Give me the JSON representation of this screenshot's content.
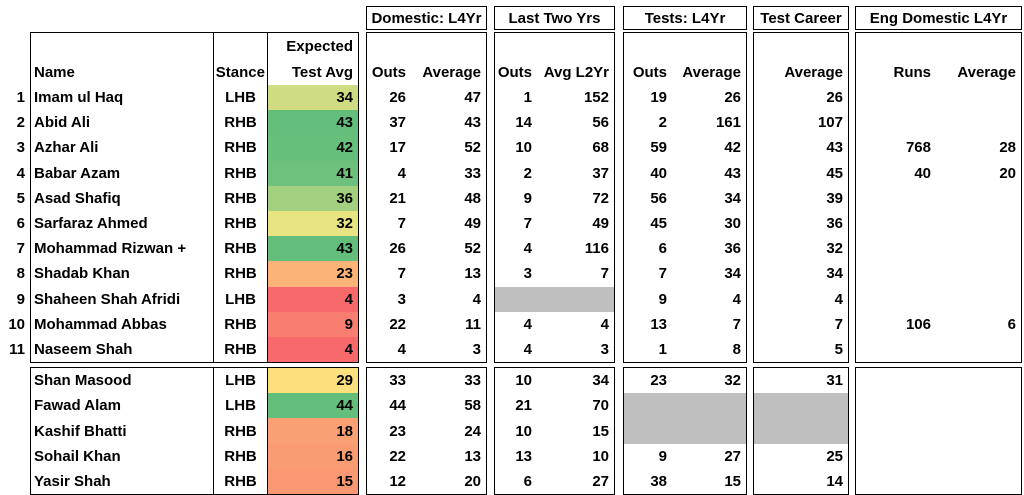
{
  "colors": {
    "gray_blank": "#bfbfbf",
    "border": "#000000"
  },
  "left": {
    "name_header": "Name",
    "stance_header": "Stance",
    "expected_header_line1": "Expected",
    "expected_header_line2": "Test Avg"
  },
  "groups": [
    {
      "id": "domestic",
      "title": "Domestic: L4Yr",
      "columns": [
        "Outs",
        "Average"
      ]
    },
    {
      "id": "last2",
      "title": "Last Two Yrs",
      "columns": [
        "Outs",
        "Avg L2Yr"
      ]
    },
    {
      "id": "tests",
      "title": "Tests: L4Yr",
      "columns": [
        "Outs",
        "Average"
      ]
    },
    {
      "id": "career",
      "title": "Test Career",
      "columns": [
        "Average"
      ]
    },
    {
      "id": "eng",
      "title": "Eng Domestic L4Yr",
      "columns": [
        "Runs",
        "Average"
      ]
    }
  ],
  "sections": [
    {
      "rows": [
        {
          "num": "1",
          "name": "Imam ul Haq",
          "stance": "LHB",
          "expected": "34",
          "expected_color": "#d0dc81",
          "gray": [],
          "cells": {
            "domestic": [
              "26",
              "47"
            ],
            "last2": [
              "1",
              "152"
            ],
            "tests": [
              "19",
              "26"
            ],
            "career": [
              "26"
            ],
            "eng": [
              "",
              ""
            ]
          }
        },
        {
          "num": "2",
          "name": "Abid Ali",
          "stance": "RHB",
          "expected": "43",
          "expected_color": "#63be7b",
          "gray": [],
          "cells": {
            "domestic": [
              "37",
              "43"
            ],
            "last2": [
              "14",
              "56"
            ],
            "tests": [
              "2",
              "161"
            ],
            "career": [
              "107"
            ],
            "eng": [
              "",
              ""
            ]
          }
        },
        {
          "num": "3",
          "name": "Azhar Ali",
          "stance": "RHB",
          "expected": "42",
          "expected_color": "#66bf7b",
          "gray": [],
          "cells": {
            "domestic": [
              "17",
              "52"
            ],
            "last2": [
              "10",
              "68"
            ],
            "tests": [
              "59",
              "42"
            ],
            "career": [
              "43"
            ],
            "eng": [
              "768",
              "28"
            ]
          }
        },
        {
          "num": "4",
          "name": "Babar Azam",
          "stance": "RHB",
          "expected": "41",
          "expected_color": "#6ec17c",
          "gray": [],
          "cells": {
            "domestic": [
              "4",
              "33"
            ],
            "last2": [
              "2",
              "37"
            ],
            "tests": [
              "40",
              "43"
            ],
            "career": [
              "45"
            ],
            "eng": [
              "40",
              "20"
            ]
          }
        },
        {
          "num": "5",
          "name": "Asad Shafiq",
          "stance": "RHB",
          "expected": "36",
          "expected_color": "#a2d07f",
          "gray": [],
          "cells": {
            "domestic": [
              "21",
              "48"
            ],
            "last2": [
              "9",
              "72"
            ],
            "tests": [
              "56",
              "34"
            ],
            "career": [
              "39"
            ],
            "eng": [
              "",
              ""
            ]
          }
        },
        {
          "num": "6",
          "name": "Sarfaraz Ahmed",
          "stance": "RHB",
          "expected": "32",
          "expected_color": "#e9e482",
          "gray": [],
          "cells": {
            "domestic": [
              "7",
              "49"
            ],
            "last2": [
              "7",
              "49"
            ],
            "tests": [
              "45",
              "30"
            ],
            "career": [
              "36"
            ],
            "eng": [
              "",
              ""
            ]
          }
        },
        {
          "num": "7",
          "name": "Mohammad Rizwan +",
          "stance": "RHB",
          "expected": "43",
          "expected_color": "#63be7b",
          "gray": [],
          "cells": {
            "domestic": [
              "26",
              "52"
            ],
            "last2": [
              "4",
              "116"
            ],
            "tests": [
              "6",
              "36"
            ],
            "career": [
              "32"
            ],
            "eng": [
              "",
              ""
            ]
          }
        },
        {
          "num": "8",
          "name": "Shadab Khan",
          "stance": "RHB",
          "expected": "23",
          "expected_color": "#fbb378",
          "gray": [],
          "cells": {
            "domestic": [
              "7",
              "13"
            ],
            "last2": [
              "3",
              "7"
            ],
            "tests": [
              "7",
              "34"
            ],
            "career": [
              "34"
            ],
            "eng": [
              "",
              ""
            ]
          }
        },
        {
          "num": "9",
          "name": "Shaheen Shah Afridi",
          "stance": "LHB",
          "expected": "4",
          "expected_color": "#f8696b",
          "gray": [
            "last2"
          ],
          "cells": {
            "domestic": [
              "3",
              "4"
            ],
            "last2": [
              "",
              ""
            ],
            "tests": [
              "9",
              "4"
            ],
            "career": [
              "4"
            ],
            "eng": [
              "",
              ""
            ]
          }
        },
        {
          "num": "10",
          "name": "Mohammad Abbas",
          "stance": "RHB",
          "expected": "9",
          "expected_color": "#f87f70",
          "gray": [],
          "cells": {
            "domestic": [
              "22",
              "11"
            ],
            "last2": [
              "4",
              "4"
            ],
            "tests": [
              "13",
              "7"
            ],
            "career": [
              "7"
            ],
            "eng": [
              "106",
              "6"
            ]
          }
        },
        {
          "num": "11",
          "name": "Naseem Shah",
          "stance": "RHB",
          "expected": "4",
          "expected_color": "#f8696b",
          "gray": [],
          "cells": {
            "domestic": [
              "4",
              "3"
            ],
            "last2": [
              "4",
              "3"
            ],
            "tests": [
              "1",
              "8"
            ],
            "career": [
              "5"
            ],
            "eng": [
              "",
              ""
            ]
          }
        }
      ]
    },
    {
      "rows": [
        {
          "num": "",
          "name": "Shan Masood",
          "stance": "LHB",
          "expected": "29",
          "expected_color": "#fbe07d",
          "gray": [],
          "cells": {
            "domestic": [
              "33",
              "33"
            ],
            "last2": [
              "10",
              "34"
            ],
            "tests": [
              "23",
              "32"
            ],
            "career": [
              "31"
            ],
            "eng": [
              "",
              ""
            ]
          }
        },
        {
          "num": "",
          "name": "Fawad Alam",
          "stance": "LHB",
          "expected": "44",
          "expected_color": "#63be7b",
          "gray": [
            "tests",
            "career"
          ],
          "cells": {
            "domestic": [
              "44",
              "58"
            ],
            "last2": [
              "21",
              "70"
            ],
            "tests": [
              "",
              ""
            ],
            "career": [
              ""
            ],
            "eng": [
              "",
              ""
            ]
          }
        },
        {
          "num": "",
          "name": "Kashif Bhatti",
          "stance": "RHB",
          "expected": "18",
          "expected_color": "#f9a175",
          "gray": [
            "tests",
            "career"
          ],
          "cells": {
            "domestic": [
              "23",
              "24"
            ],
            "last2": [
              "10",
              "15"
            ],
            "tests": [
              "",
              ""
            ],
            "career": [
              ""
            ],
            "eng": [
              "",
              ""
            ]
          }
        },
        {
          "num": "",
          "name": "Sohail Khan",
          "stance": "RHB",
          "expected": "16",
          "expected_color": "#f99b73",
          "gray": [],
          "cells": {
            "domestic": [
              "22",
              "13"
            ],
            "last2": [
              "13",
              "10"
            ],
            "tests": [
              "9",
              "27"
            ],
            "career": [
              "25"
            ],
            "eng": [
              "",
              ""
            ]
          }
        },
        {
          "num": "",
          "name": "Yasir Shah",
          "stance": "RHB",
          "expected": "15",
          "expected_color": "#f99872",
          "gray": [],
          "cells": {
            "domestic": [
              "12",
              "20"
            ],
            "last2": [
              "6",
              "27"
            ],
            "tests": [
              "38",
              "15"
            ],
            "career": [
              "14"
            ],
            "eng": [
              "",
              ""
            ]
          }
        }
      ]
    }
  ]
}
